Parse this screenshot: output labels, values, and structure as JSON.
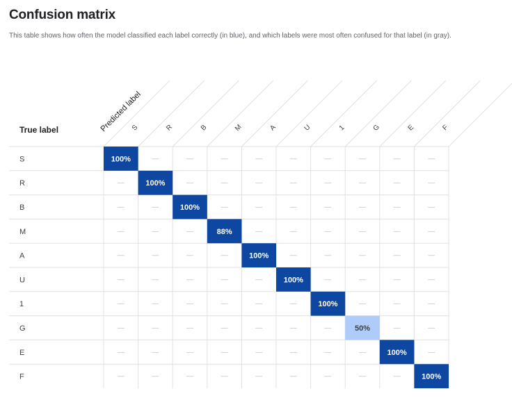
{
  "page": {
    "title": "Confusion matrix",
    "description": "This table shows how often the model classified each label correctly (in blue), and which labels were most often confused for that label (in gray)."
  },
  "chart_data": {
    "type": "heatmap",
    "title": "Confusion matrix",
    "row_axis_label": "True label",
    "col_axis_label": "Predicted label",
    "labels": [
      "S",
      "R",
      "B",
      "M",
      "A",
      "U",
      "1",
      "G",
      "E",
      "F"
    ],
    "empty_symbol": "—",
    "cells": [
      [
        "100%",
        "—",
        "—",
        "—",
        "—",
        "—",
        "—",
        "—",
        "—",
        "—"
      ],
      [
        "—",
        "100%",
        "—",
        "—",
        "—",
        "—",
        "—",
        "—",
        "—",
        "—"
      ],
      [
        "—",
        "—",
        "100%",
        "—",
        "—",
        "—",
        "—",
        "—",
        "—",
        "—"
      ],
      [
        "—",
        "—",
        "—",
        "88%",
        "—",
        "—",
        "—",
        "—",
        "—",
        "—"
      ],
      [
        "—",
        "—",
        "—",
        "—",
        "100%",
        "—",
        "—",
        "—",
        "—",
        "—"
      ],
      [
        "—",
        "—",
        "—",
        "—",
        "—",
        "100%",
        "—",
        "—",
        "—",
        "—"
      ],
      [
        "—",
        "—",
        "—",
        "—",
        "—",
        "—",
        "100%",
        "—",
        "—",
        "—"
      ],
      [
        "—",
        "—",
        "—",
        "—",
        "—",
        "—",
        "—",
        "50%",
        "—",
        "—"
      ],
      [
        "—",
        "—",
        "—",
        "—",
        "—",
        "—",
        "—",
        "—",
        "100%",
        "—"
      ],
      [
        "—",
        "—",
        "—",
        "—",
        "—",
        "—",
        "—",
        "—",
        "—",
        "100%"
      ]
    ],
    "values": [
      [
        100,
        null,
        null,
        null,
        null,
        null,
        null,
        null,
        null,
        null
      ],
      [
        null,
        100,
        null,
        null,
        null,
        null,
        null,
        null,
        null,
        null
      ],
      [
        null,
        null,
        100,
        null,
        null,
        null,
        null,
        null,
        null,
        null
      ],
      [
        null,
        null,
        null,
        88,
        null,
        null,
        null,
        null,
        null,
        null
      ],
      [
        null,
        null,
        null,
        null,
        100,
        null,
        null,
        null,
        null,
        null
      ],
      [
        null,
        null,
        null,
        null,
        null,
        100,
        null,
        null,
        null,
        null
      ],
      [
        null,
        null,
        null,
        null,
        null,
        null,
        100,
        null,
        null,
        null
      ],
      [
        null,
        null,
        null,
        null,
        null,
        null,
        null,
        50,
        null,
        null
      ],
      [
        null,
        null,
        null,
        null,
        null,
        null,
        null,
        null,
        100,
        null
      ],
      [
        null,
        null,
        null,
        null,
        null,
        null,
        null,
        null,
        null,
        100
      ]
    ],
    "colors": {
      "high": "#0d47a1",
      "low": "#aecbfa",
      "text_on_dark": "#ffffff",
      "text_on_light": "#3c4043",
      "grid": "#e0e0e0",
      "dash": "#bdbdbd"
    }
  }
}
